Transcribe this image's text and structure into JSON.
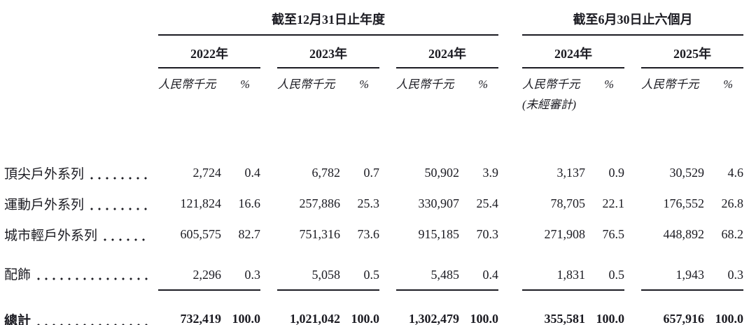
{
  "colors": {
    "background": "#ffffff",
    "text": "#1b1b22",
    "rule": "#1b1b22"
  },
  "table": {
    "period_groups": [
      {
        "label": "截至12月31日止年度"
      },
      {
        "label": "截至6月30日止六個月"
      }
    ],
    "years": [
      "2022年",
      "2023年",
      "2024年",
      "2024年",
      "2025年"
    ],
    "unit_label": "人民幣千元",
    "percent_label": "%",
    "unaudited_note": "(未經審計)",
    "rows": [
      {
        "label": "頂尖戶外系列",
        "values": [
          "2,724",
          "0.4",
          "6,782",
          "0.7",
          "50,902",
          "3.9",
          "3,137",
          "0.9",
          "30,529",
          "4.6"
        ]
      },
      {
        "label": "運動戶外系列",
        "values": [
          "121,824",
          "16.6",
          "257,886",
          "25.3",
          "330,907",
          "25.4",
          "78,705",
          "22.1",
          "176,552",
          "26.8"
        ]
      },
      {
        "label": "城市輕戶外系列",
        "values": [
          "605,575",
          "82.7",
          "751,316",
          "73.6",
          "915,185",
          "70.3",
          "271,908",
          "76.5",
          "448,892",
          "68.2"
        ]
      },
      {
        "label": "配飾",
        "values": [
          "2,296",
          "0.3",
          "5,058",
          "0.5",
          "5,485",
          "0.4",
          "1,831",
          "0.5",
          "1,943",
          "0.3"
        ]
      }
    ],
    "total_row": {
      "label": "總計",
      "values": [
        "732,419",
        "100.0",
        "1,021,042",
        "100.0",
        "1,302,479",
        "100.0",
        "355,581",
        "100.0",
        "657,916",
        "100.0"
      ]
    }
  }
}
